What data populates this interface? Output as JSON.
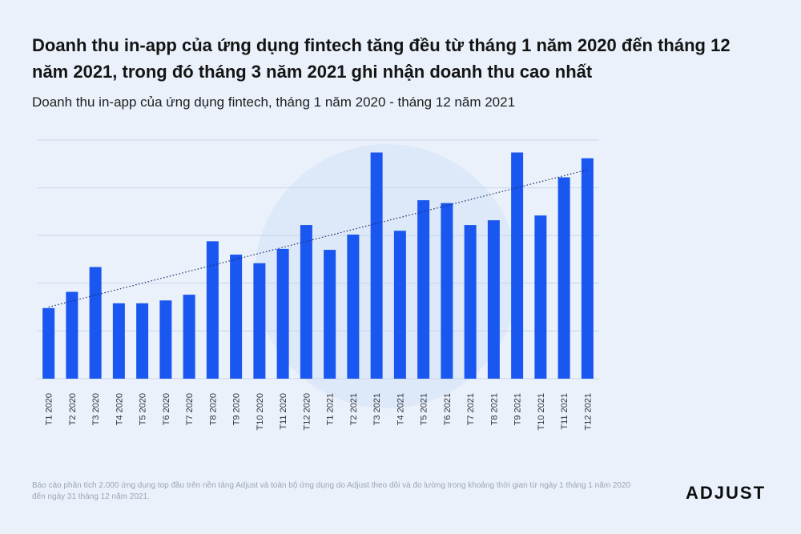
{
  "title": "Doanh thu in-app của ứng dụng fintech tăng đều từ tháng 1 năm 2020 đến tháng 12 năm 2021, trong đó tháng 3 năm 2021 ghi nhận doanh thu cao nhất",
  "subtitle": "Doanh thu in-app của ứng dụng fintech, tháng 1 năm 2020 - tháng 12 năm 2021",
  "footnote": "Báo cáo phân tích 2.000 ứng dụng top đầu trên nền tảng Adjust và toàn bộ ứng dụng do Adjust theo dõi và đo lường trong khoảng thời gian từ ngày 1 tháng 1 năm 2020 đến ngày 31 tháng 12 năm 2021.",
  "logo": "ADJUST",
  "colors": {
    "bar": "#1a56f0",
    "trend": "#1a2a6c",
    "grid": "#c9d6ea"
  },
  "chart_data": {
    "type": "bar",
    "categories": [
      "T1 2020",
      "T2 2020",
      "T3 2020",
      "T4 2020",
      "T5 2020",
      "T6 2020",
      "T7 2020",
      "T8 2020",
      "T9 2020",
      "T10 2020",
      "T11 2020",
      "T12 2020",
      "T1 2021",
      "T2 2021",
      "T3 2021",
      "T4 2021",
      "T5 2021",
      "T6 2021",
      "T7 2021",
      "T8 2021",
      "T9 2021",
      "T10 2021",
      "T11 2021",
      "T12 2021"
    ],
    "values": [
      74,
      91,
      117,
      79,
      79,
      82,
      88,
      144,
      130,
      121,
      136,
      161,
      135,
      151,
      237,
      155,
      187,
      184,
      161,
      166,
      237,
      171,
      211,
      231
    ],
    "trendline": true,
    "trendline_style": "dotted",
    "ylim": [
      0,
      250
    ],
    "y_ticks_shown": false,
    "grid": true,
    "xlabel": "",
    "ylabel": ""
  }
}
